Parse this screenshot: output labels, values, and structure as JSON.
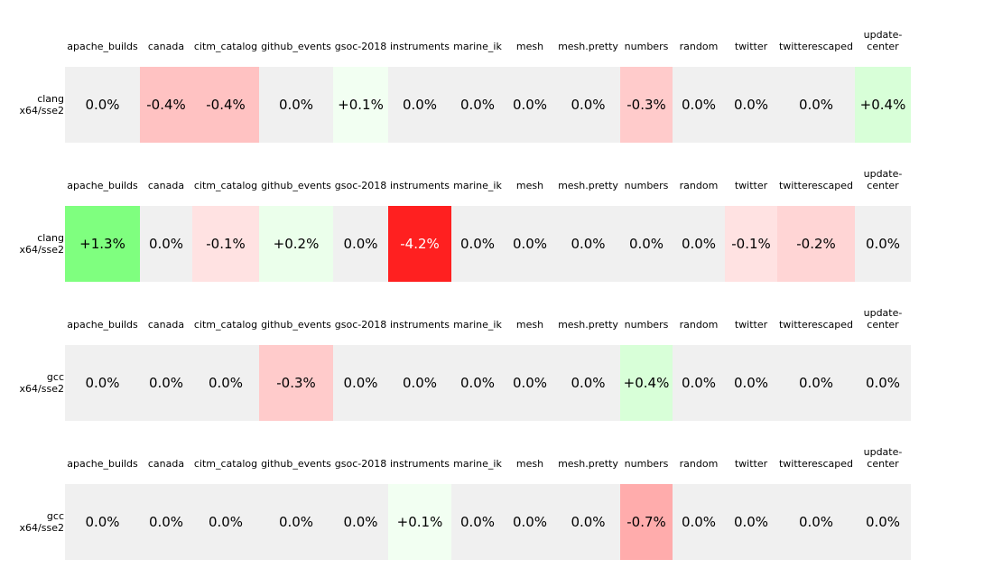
{
  "chart_data": {
    "type": "heatmap",
    "colors": {
      "neutral": "#f0f0f0",
      "positive_max": "#7fff7f",
      "negative_max": "#ff2020",
      "text_dark": "#000000",
      "text_light": "#ffffff"
    },
    "panels": [
      {
        "row_label": [
          "clang",
          "x64/sse2"
        ],
        "columns": [
          "apache_builds",
          "canada",
          "citm_catalog",
          "github_events",
          "gsoc-2018",
          "instruments",
          "marine_ik",
          "mesh",
          "mesh.pretty",
          "numbers",
          "random",
          "twitter",
          "twitterescaped",
          "update-center"
        ],
        "header_lines": [
          [
            "apache_builds"
          ],
          [
            "canada"
          ],
          [
            "citm_catalog"
          ],
          [
            "github_events"
          ],
          [
            "gsoc-2018"
          ],
          [
            "instruments"
          ],
          [
            "marine_ik"
          ],
          [
            "mesh"
          ],
          [
            "mesh.pretty"
          ],
          [
            "numbers"
          ],
          [
            "random"
          ],
          [
            "twitter"
          ],
          [
            "twitterescaped"
          ],
          [
            "update-",
            "center"
          ]
        ],
        "values": [
          0.0,
          -0.4,
          -0.4,
          0.0,
          0.1,
          0.0,
          0.0,
          0.0,
          0.0,
          -0.3,
          0.0,
          0.0,
          0.0,
          0.4
        ],
        "labels": [
          "0.0%",
          "-0.4%",
          "-0.4%",
          "0.0%",
          "+0.1%",
          "0.0%",
          "0.0%",
          "0.0%",
          "0.0%",
          "-0.3%",
          "0.0%",
          "0.0%",
          "0.0%",
          "+0.4%"
        ]
      },
      {
        "row_label": [
          "clang",
          "x64/sse2"
        ],
        "columns": [
          "apache_builds",
          "canada",
          "citm_catalog",
          "github_events",
          "gsoc-2018",
          "instruments",
          "marine_ik",
          "mesh",
          "mesh.pretty",
          "numbers",
          "random",
          "twitter",
          "twitterescaped",
          "update-center"
        ],
        "header_lines": [
          [
            "apache_builds"
          ],
          [
            "canada"
          ],
          [
            "citm_catalog"
          ],
          [
            "github_events"
          ],
          [
            "gsoc-2018"
          ],
          [
            "instruments"
          ],
          [
            "marine_ik"
          ],
          [
            "mesh"
          ],
          [
            "mesh.pretty"
          ],
          [
            "numbers"
          ],
          [
            "random"
          ],
          [
            "twitter"
          ],
          [
            "twitterescaped"
          ],
          [
            "update-",
            "center"
          ]
        ],
        "values": [
          1.3,
          0.0,
          -0.1,
          0.2,
          0.0,
          -4.2,
          0.0,
          0.0,
          0.0,
          0.0,
          0.0,
          -0.1,
          -0.2,
          0.0
        ],
        "labels": [
          "+1.3%",
          "0.0%",
          "-0.1%",
          "+0.2%",
          "0.0%",
          "-4.2%",
          "0.0%",
          "0.0%",
          "0.0%",
          "0.0%",
          "0.0%",
          "-0.1%",
          "-0.2%",
          "0.0%"
        ]
      },
      {
        "row_label": [
          "gcc",
          "x64/sse2"
        ],
        "columns": [
          "apache_builds",
          "canada",
          "citm_catalog",
          "github_events",
          "gsoc-2018",
          "instruments",
          "marine_ik",
          "mesh",
          "mesh.pretty",
          "numbers",
          "random",
          "twitter",
          "twitterescaped",
          "update-center"
        ],
        "header_lines": [
          [
            "apache_builds"
          ],
          [
            "canada"
          ],
          [
            "citm_catalog"
          ],
          [
            "github_events"
          ],
          [
            "gsoc-2018"
          ],
          [
            "instruments"
          ],
          [
            "marine_ik"
          ],
          [
            "mesh"
          ],
          [
            "mesh.pretty"
          ],
          [
            "numbers"
          ],
          [
            "random"
          ],
          [
            "twitter"
          ],
          [
            "twitterescaped"
          ],
          [
            "update-",
            "center"
          ]
        ],
        "values": [
          0.0,
          0.0,
          0.0,
          -0.3,
          0.0,
          0.0,
          0.0,
          0.0,
          0.0,
          0.4,
          0.0,
          0.0,
          0.0,
          0.0
        ],
        "labels": [
          "0.0%",
          "0.0%",
          "0.0%",
          "-0.3%",
          "0.0%",
          "0.0%",
          "0.0%",
          "0.0%",
          "0.0%",
          "+0.4%",
          "0.0%",
          "0.0%",
          "0.0%",
          "0.0%"
        ]
      },
      {
        "row_label": [
          "gcc",
          "x64/sse2"
        ],
        "columns": [
          "apache_builds",
          "canada",
          "citm_catalog",
          "github_events",
          "gsoc-2018",
          "instruments",
          "marine_ik",
          "mesh",
          "mesh.pretty",
          "numbers",
          "random",
          "twitter",
          "twitterescaped",
          "update-center"
        ],
        "header_lines": [
          [
            "apache_builds"
          ],
          [
            "canada"
          ],
          [
            "citm_catalog"
          ],
          [
            "github_events"
          ],
          [
            "gsoc-2018"
          ],
          [
            "instruments"
          ],
          [
            "marine_ik"
          ],
          [
            "mesh"
          ],
          [
            "mesh.pretty"
          ],
          [
            "numbers"
          ],
          [
            "random"
          ],
          [
            "twitter"
          ],
          [
            "twitterescaped"
          ],
          [
            "update-",
            "center"
          ]
        ],
        "values": [
          0.0,
          0.0,
          0.0,
          0.0,
          0.0,
          0.1,
          0.0,
          0.0,
          0.0,
          -0.7,
          0.0,
          0.0,
          0.0,
          0.0
        ],
        "labels": [
          "0.0%",
          "0.0%",
          "0.0%",
          "0.0%",
          "0.0%",
          "+0.1%",
          "0.0%",
          "0.0%",
          "0.0%",
          "-0.7%",
          "0.0%",
          "0.0%",
          "0.0%",
          "0.0%"
        ]
      }
    ]
  }
}
